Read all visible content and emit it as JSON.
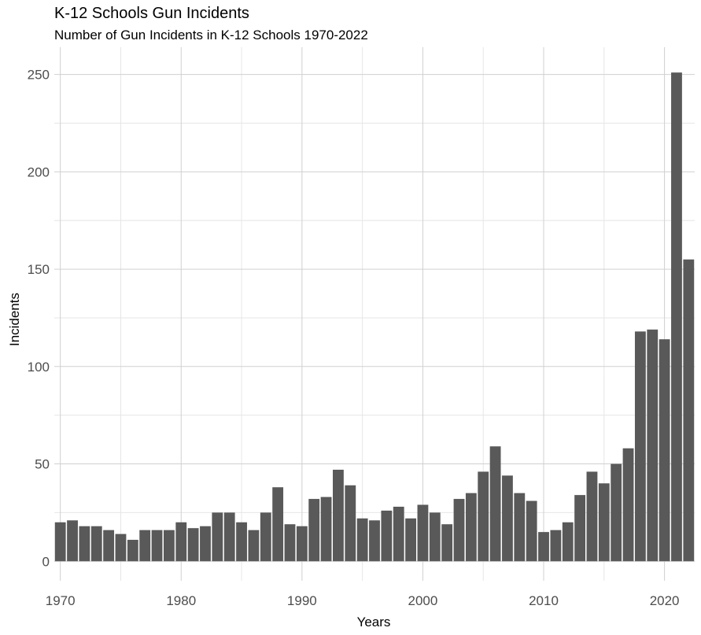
{
  "chart_data": {
    "type": "bar",
    "title": "K-12 Schools Gun Incidents",
    "subtitle": "Number of Gun Incidents in K-12 Schools 1970-2022",
    "xlabel": "Years",
    "ylabel": "Incidents",
    "x": [
      1970,
      1971,
      1972,
      1973,
      1974,
      1975,
      1976,
      1977,
      1978,
      1979,
      1980,
      1981,
      1982,
      1983,
      1984,
      1985,
      1986,
      1987,
      1988,
      1989,
      1990,
      1991,
      1992,
      1993,
      1994,
      1995,
      1996,
      1997,
      1998,
      1999,
      2000,
      2001,
      2002,
      2003,
      2004,
      2005,
      2006,
      2007,
      2008,
      2009,
      2010,
      2011,
      2012,
      2013,
      2014,
      2015,
      2016,
      2017,
      2018,
      2019,
      2020,
      2021,
      2022
    ],
    "values": [
      20,
      21,
      18,
      18,
      16,
      14,
      11,
      16,
      16,
      16,
      20,
      17,
      18,
      25,
      25,
      20,
      16,
      25,
      38,
      19,
      18,
      32,
      33,
      47,
      39,
      22,
      21,
      26,
      28,
      22,
      29,
      25,
      19,
      32,
      35,
      46,
      59,
      44,
      35,
      31,
      15,
      16,
      20,
      34,
      46,
      40,
      50,
      58,
      118,
      119,
      114,
      251,
      155
    ],
    "xticks": [
      1970,
      1980,
      1990,
      2000,
      2010,
      2020
    ],
    "yticks": [
      0,
      50,
      100,
      150,
      200,
      250
    ],
    "xlim": [
      1969.5,
      2022.5
    ],
    "ylim": [
      -10,
      264
    ],
    "bar_color": "#595959",
    "grid": true,
    "legend": "none"
  }
}
